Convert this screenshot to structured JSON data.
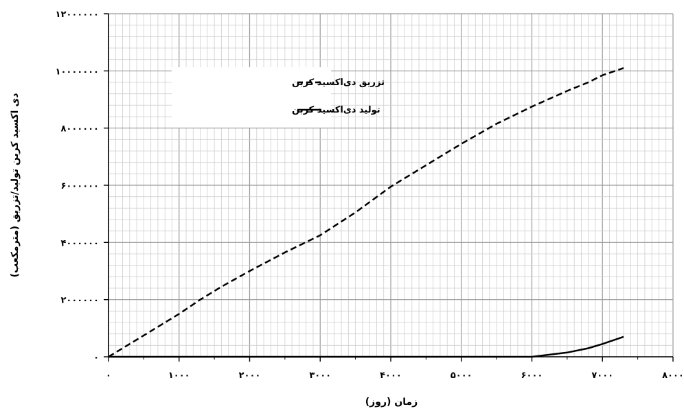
{
  "chart_data": {
    "type": "line",
    "title": "",
    "xlabel": "زمان (روز)",
    "ylabel": "دی اکسید کربن تولید/تزریق (مترمکعب)",
    "xlim": [
      0,
      8000
    ],
    "ylim": [
      0,
      12000000
    ],
    "x_ticks": [
      0,
      1000,
      2000,
      3000,
      4000,
      5000,
      6000,
      7000,
      8000
    ],
    "y_ticks": [
      0,
      2000000,
      4000000,
      6000000,
      8000000,
      10000000,
      12000000
    ],
    "x_tick_labels": [
      "۰",
      "۱۰۰۰",
      "۲۰۰۰",
      "۳۰۰۰",
      "۴۰۰۰",
      "۵۰۰۰",
      "۶۰۰۰",
      "۷۰۰۰",
      "۸۰۰۰"
    ],
    "y_tick_labels": [
      "۰",
      "۲۰۰۰۰۰۰",
      "۴۰۰۰۰۰۰",
      "۶۰۰۰۰۰۰",
      "۸۰۰۰۰۰۰",
      "۱۰۰۰۰۰۰۰",
      "۱۲۰۰۰۰۰۰"
    ],
    "grid": true,
    "legend_position": "top-left",
    "series": [
      {
        "name": "تزریق دی‌اکسید کربن",
        "style": "dashed",
        "color": "#000000",
        "points": [
          [
            0,
            0
          ],
          [
            500,
            750000
          ],
          [
            1000,
            1500000
          ],
          [
            1300,
            2000000
          ],
          [
            1600,
            2450000
          ],
          [
            2000,
            3000000
          ],
          [
            2500,
            3650000
          ],
          [
            3000,
            4250000
          ],
          [
            3500,
            5050000
          ],
          [
            4000,
            5950000
          ],
          [
            4500,
            6700000
          ],
          [
            5000,
            7450000
          ],
          [
            5500,
            8150000
          ],
          [
            6000,
            8750000
          ],
          [
            6500,
            9300000
          ],
          [
            6800,
            9600000
          ],
          [
            7000,
            9850000
          ],
          [
            7300,
            10100000
          ]
        ]
      },
      {
        "name": "تولید دی‌اکسید کربن",
        "style": "solid",
        "color": "#000000",
        "points": [
          [
            0,
            0
          ],
          [
            4500,
            0
          ],
          [
            5200,
            0
          ],
          [
            6000,
            0
          ],
          [
            6500,
            150000
          ],
          [
            6800,
            300000
          ],
          [
            7000,
            450000
          ],
          [
            7300,
            700000
          ]
        ]
      }
    ]
  }
}
